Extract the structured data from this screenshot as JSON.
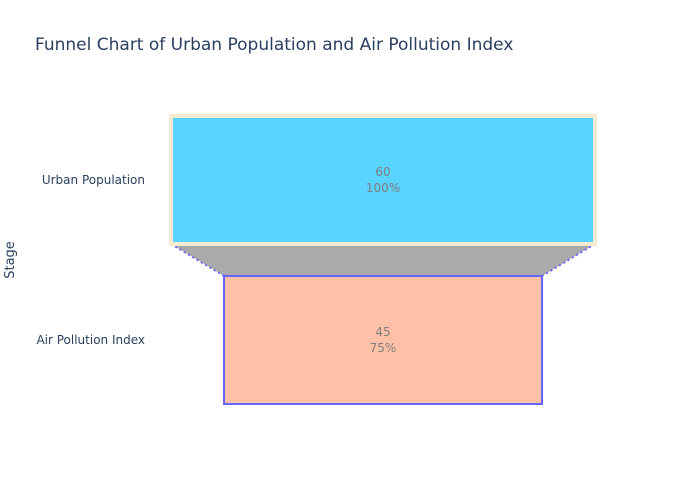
{
  "chart_data": {
    "type": "funnel",
    "title": "Funnel Chart of Urban Population and Air Pollution Index",
    "ylabel": "Stage",
    "categories": [
      "Urban Population",
      "Air Pollution Index"
    ],
    "values": [
      60,
      45
    ],
    "percent_labels": [
      "100%",
      "75%"
    ],
    "colors": {
      "bars": [
        "#59d3ff",
        "#ffc0a8"
      ],
      "borders": [
        "#f5ebd3",
        "#6666ff"
      ],
      "connector_fill": "#aaaaaa",
      "connector_line": "#6666ff",
      "title": "#2a3f5f",
      "axis_text": "#2a3f5f",
      "value_text": "#7f7f7f"
    }
  }
}
